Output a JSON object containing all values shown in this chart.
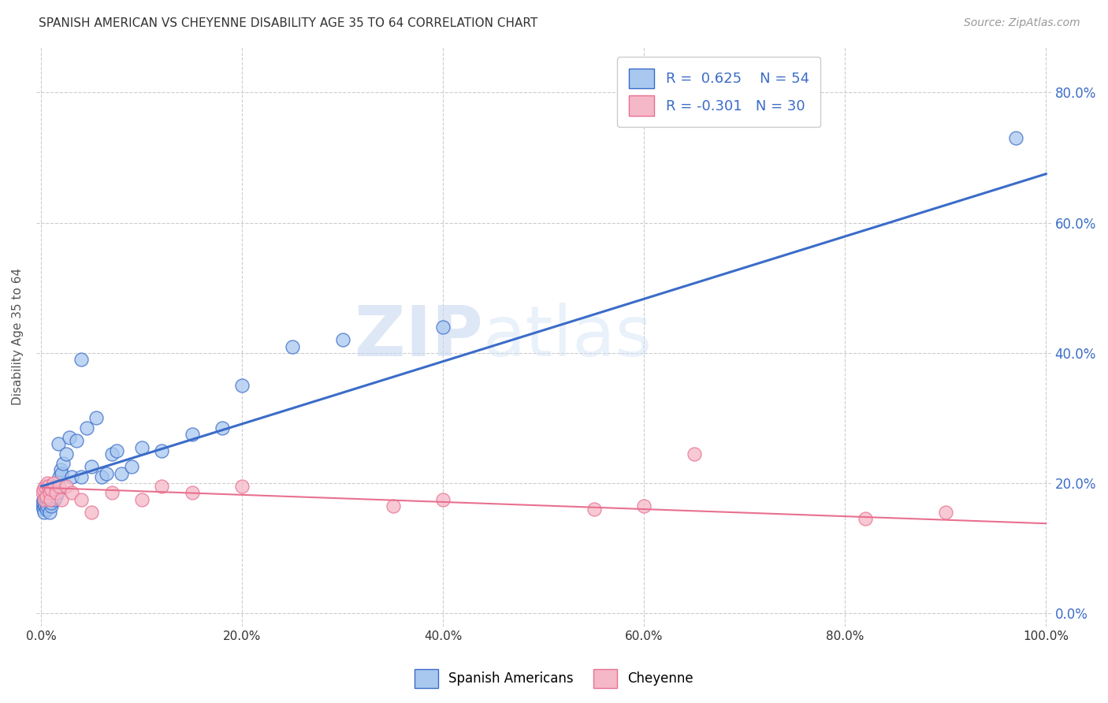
{
  "title": "SPANISH AMERICAN VS CHEYENNE DISABILITY AGE 35 TO 64 CORRELATION CHART",
  "source": "Source: ZipAtlas.com",
  "ylabel": "Disability Age 35 to 64",
  "r_blue": 0.625,
  "n_blue": 54,
  "r_pink": -0.301,
  "n_pink": 30,
  "blue_color": "#A8C8F0",
  "pink_color": "#F5B8C8",
  "blue_line_color": "#3B6CC8",
  "pink_line_color": "#E87090",
  "legend_label_blue": "Spanish Americans",
  "legend_label_pink": "Cheyenne",
  "background_color": "#ffffff",
  "grid_color": "#cccccc",
  "xlim": [
    -0.005,
    1.005
  ],
  "ylim": [
    -0.02,
    0.87
  ],
  "blue_x": [
    0.001,
    0.001,
    0.002,
    0.002,
    0.003,
    0.003,
    0.004,
    0.004,
    0.005,
    0.005,
    0.006,
    0.006,
    0.007,
    0.007,
    0.008,
    0.008,
    0.009,
    0.01,
    0.01,
    0.011,
    0.012,
    0.013,
    0.014,
    0.015,
    0.016,
    0.017,
    0.018,
    0.019,
    0.02,
    0.022,
    0.025,
    0.028,
    0.03,
    0.035,
    0.04,
    0.045,
    0.05,
    0.055,
    0.06,
    0.065,
    0.07,
    0.075,
    0.08,
    0.09,
    0.1,
    0.12,
    0.15,
    0.18,
    0.2,
    0.25,
    0.3,
    0.4,
    0.97,
    0.04
  ],
  "blue_y": [
    0.165,
    0.17,
    0.16,
    0.175,
    0.17,
    0.155,
    0.165,
    0.18,
    0.16,
    0.175,
    0.17,
    0.165,
    0.175,
    0.185,
    0.155,
    0.19,
    0.175,
    0.165,
    0.17,
    0.185,
    0.195,
    0.175,
    0.19,
    0.18,
    0.185,
    0.26,
    0.21,
    0.22,
    0.215,
    0.23,
    0.245,
    0.27,
    0.21,
    0.265,
    0.21,
    0.285,
    0.225,
    0.3,
    0.21,
    0.215,
    0.245,
    0.25,
    0.215,
    0.225,
    0.255,
    0.25,
    0.275,
    0.285,
    0.35,
    0.41,
    0.42,
    0.44,
    0.73,
    0.39
  ],
  "pink_x": [
    0.001,
    0.002,
    0.003,
    0.004,
    0.005,
    0.006,
    0.007,
    0.008,
    0.009,
    0.01,
    0.012,
    0.015,
    0.018,
    0.02,
    0.025,
    0.03,
    0.04,
    0.05,
    0.07,
    0.1,
    0.12,
    0.15,
    0.2,
    0.35,
    0.4,
    0.55,
    0.6,
    0.65,
    0.82,
    0.9
  ],
  "pink_y": [
    0.185,
    0.19,
    0.175,
    0.195,
    0.18,
    0.2,
    0.195,
    0.185,
    0.175,
    0.19,
    0.2,
    0.185,
    0.195,
    0.175,
    0.195,
    0.185,
    0.175,
    0.155,
    0.185,
    0.175,
    0.195,
    0.185,
    0.195,
    0.165,
    0.175,
    0.16,
    0.165,
    0.245,
    0.145,
    0.155
  ],
  "watermark_zip": "ZIP",
  "watermark_atlas": "atlas",
  "xticks": [
    0.0,
    0.2,
    0.4,
    0.6,
    0.8,
    1.0
  ],
  "xtick_labels": [
    "0.0%",
    "20.0%",
    "40.0%",
    "60.0%",
    "80.0%",
    "100.0%"
  ],
  "yticks": [
    0.0,
    0.2,
    0.4,
    0.6,
    0.8
  ],
  "ytick_labels": [
    "0.0%",
    "20.0%",
    "40.0%",
    "60.0%",
    "80.0%"
  ],
  "blue_intercept": 0.195,
  "blue_slope": 0.48,
  "pink_intercept": 0.193,
  "pink_slope": -0.055
}
